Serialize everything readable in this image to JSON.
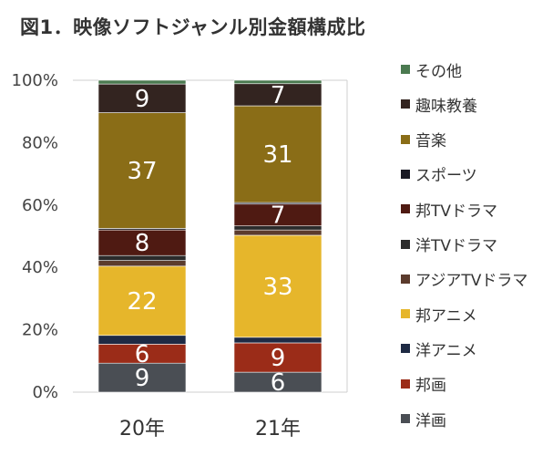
{
  "title": "図1．映像ソフトジャンル別金額構成比",
  "chart_data": {
    "type": "bar",
    "stacked": true,
    "categories": [
      "20年",
      "21年"
    ],
    "ylim": [
      0,
      100
    ],
    "yticks": [
      "0%",
      "20%",
      "40%",
      "60%",
      "80%",
      "100%"
    ],
    "grid": false,
    "legend_position": "right",
    "series": [
      {
        "name": "洋画",
        "color": "#4a4e54",
        "values": [
          9.3,
          6.4
        ],
        "labels": [
          "9",
          "6"
        ]
      },
      {
        "name": "邦画",
        "color": "#9b2c18",
        "values": [
          6.1,
          9.4
        ],
        "labels": [
          "6",
          "9"
        ]
      },
      {
        "name": "洋アニメ",
        "color": "#1e2a44",
        "values": [
          2.8,
          1.8
        ],
        "labels": [
          "",
          ""
        ]
      },
      {
        "name": "邦アニメ",
        "color": "#e6b62b",
        "values": [
          22.2,
          32.7
        ],
        "labels": [
          "22",
          "33"
        ]
      },
      {
        "name": "アジアTVドラマ",
        "color": "#5b3b2d",
        "values": [
          1.8,
          1.7
        ],
        "labels": [
          "",
          ""
        ]
      },
      {
        "name": "洋TVドラマ",
        "color": "#2b2b2b",
        "values": [
          1.6,
          1.3
        ],
        "labels": [
          "",
          ""
        ]
      },
      {
        "name": "邦TVドラマ",
        "color": "#4f1a12",
        "values": [
          8.2,
          7.0
        ],
        "labels": [
          "8",
          "7"
        ]
      },
      {
        "name": "スポーツ",
        "color": "#1a1a24",
        "values": [
          0.5,
          0.5
        ],
        "labels": [
          "",
          ""
        ]
      },
      {
        "name": "音楽",
        "color": "#8a6d17",
        "values": [
          37.1,
          31.0
        ],
        "labels": [
          "37",
          "31"
        ]
      },
      {
        "name": "趣味教養",
        "color": "#332420",
        "values": [
          9.2,
          7.1
        ],
        "labels": [
          "9",
          "7"
        ]
      },
      {
        "name": "その他",
        "color": "#4b7a50",
        "values": [
          1.2,
          1.1
        ],
        "labels": [
          "",
          ""
        ]
      }
    ],
    "legend_order": [
      "その他",
      "趣味教養",
      "音楽",
      "スポーツ",
      "邦TVドラマ",
      "洋TVドラマ",
      "アジアTVドラマ",
      "邦アニメ",
      "洋アニメ",
      "邦画",
      "洋画"
    ]
  }
}
